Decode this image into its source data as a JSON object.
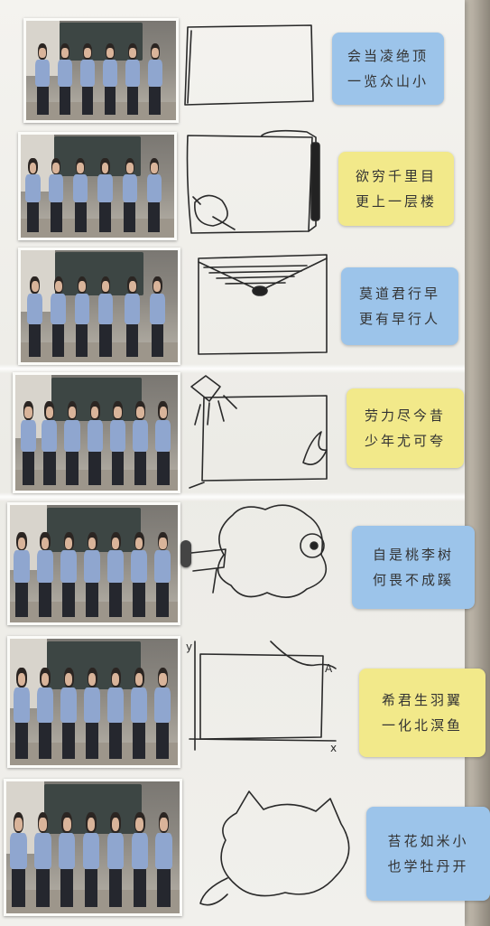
{
  "notes": [
    {
      "line1": "会当凌绝顶",
      "line2": "一览众山小",
      "color": "#9cc4ea"
    },
    {
      "line1": "欲穷千里目",
      "line2": "更上一层楼",
      "color": "#f2e98a"
    },
    {
      "line1": "莫道君行早",
      "line2": "更有早行人",
      "color": "#9cc4ea"
    },
    {
      "line1": "劳力尽今昔",
      "line2": "少年尤可夸",
      "color": "#f2e98a"
    },
    {
      "line1": "自是桃李树",
      "line2": "何畏不成蹊",
      "color": "#9cc4ea"
    },
    {
      "line1": "希君生羽翼",
      "line2": "一化北溟鱼",
      "color": "#f2e98a"
    },
    {
      "line1": "苔花如米小",
      "line2": "也学牡丹开",
      "color": "#9cc4ea"
    }
  ],
  "graph_labels": {
    "y": "y",
    "x": "x",
    "point": "A"
  },
  "photos": [
    {
      "people": 6
    },
    {
      "people": 6
    },
    {
      "people": 6
    },
    {
      "people": 7
    },
    {
      "people": 7
    },
    {
      "people": 7
    },
    {
      "people": 7
    }
  ]
}
